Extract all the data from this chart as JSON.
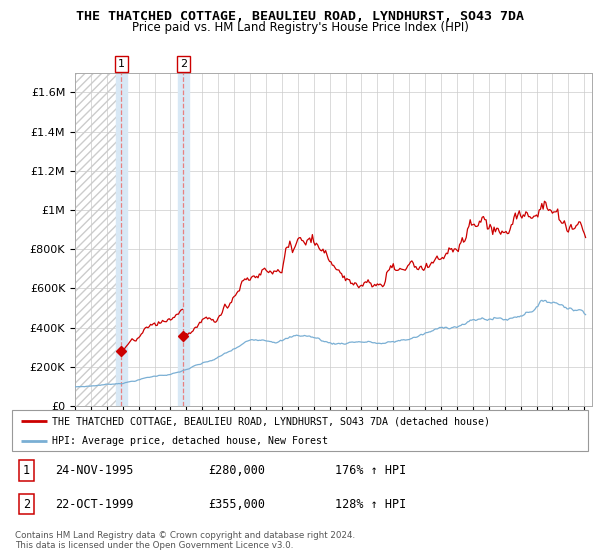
{
  "title": "THE THATCHED COTTAGE, BEAULIEU ROAD, LYNDHURST, SO43 7DA",
  "subtitle": "Price paid vs. HM Land Registry's House Price Index (HPI)",
  "legend_line1": "THE THATCHED COTTAGE, BEAULIEU ROAD, LYNDHURST, SO43 7DA (detached house)",
  "legend_line2": "HPI: Average price, detached house, New Forest",
  "sale1_label": "1",
  "sale1_date": "24-NOV-1995",
  "sale1_price": "£280,000",
  "sale1_hpi": "176% ↑ HPI",
  "sale2_label": "2",
  "sale2_date": "22-OCT-1999",
  "sale2_price": "£355,000",
  "sale2_hpi": "128% ↑ HPI",
  "footnote": "Contains HM Land Registry data © Crown copyright and database right 2024.\nThis data is licensed under the Open Government Licence v3.0.",
  "sale1_year": 1995.9,
  "sale2_year": 1999.8,
  "sale1_value": 280000,
  "sale2_value": 355000,
  "red_line_color": "#cc0000",
  "blue_line_color": "#7aafd4",
  "sale_dot_color": "#cc0000",
  "highlight_color": "#d8e8f5",
  "vline_color": "#e88080",
  "ylim": [
    0,
    1700000
  ],
  "yticks": [
    0,
    200000,
    400000,
    600000,
    800000,
    1000000,
    1200000,
    1400000,
    1600000
  ],
  "ytick_labels": [
    "£0",
    "£200K",
    "£400K",
    "£600K",
    "£800K",
    "£1M",
    "£1.2M",
    "£1.4M",
    "£1.6M"
  ]
}
